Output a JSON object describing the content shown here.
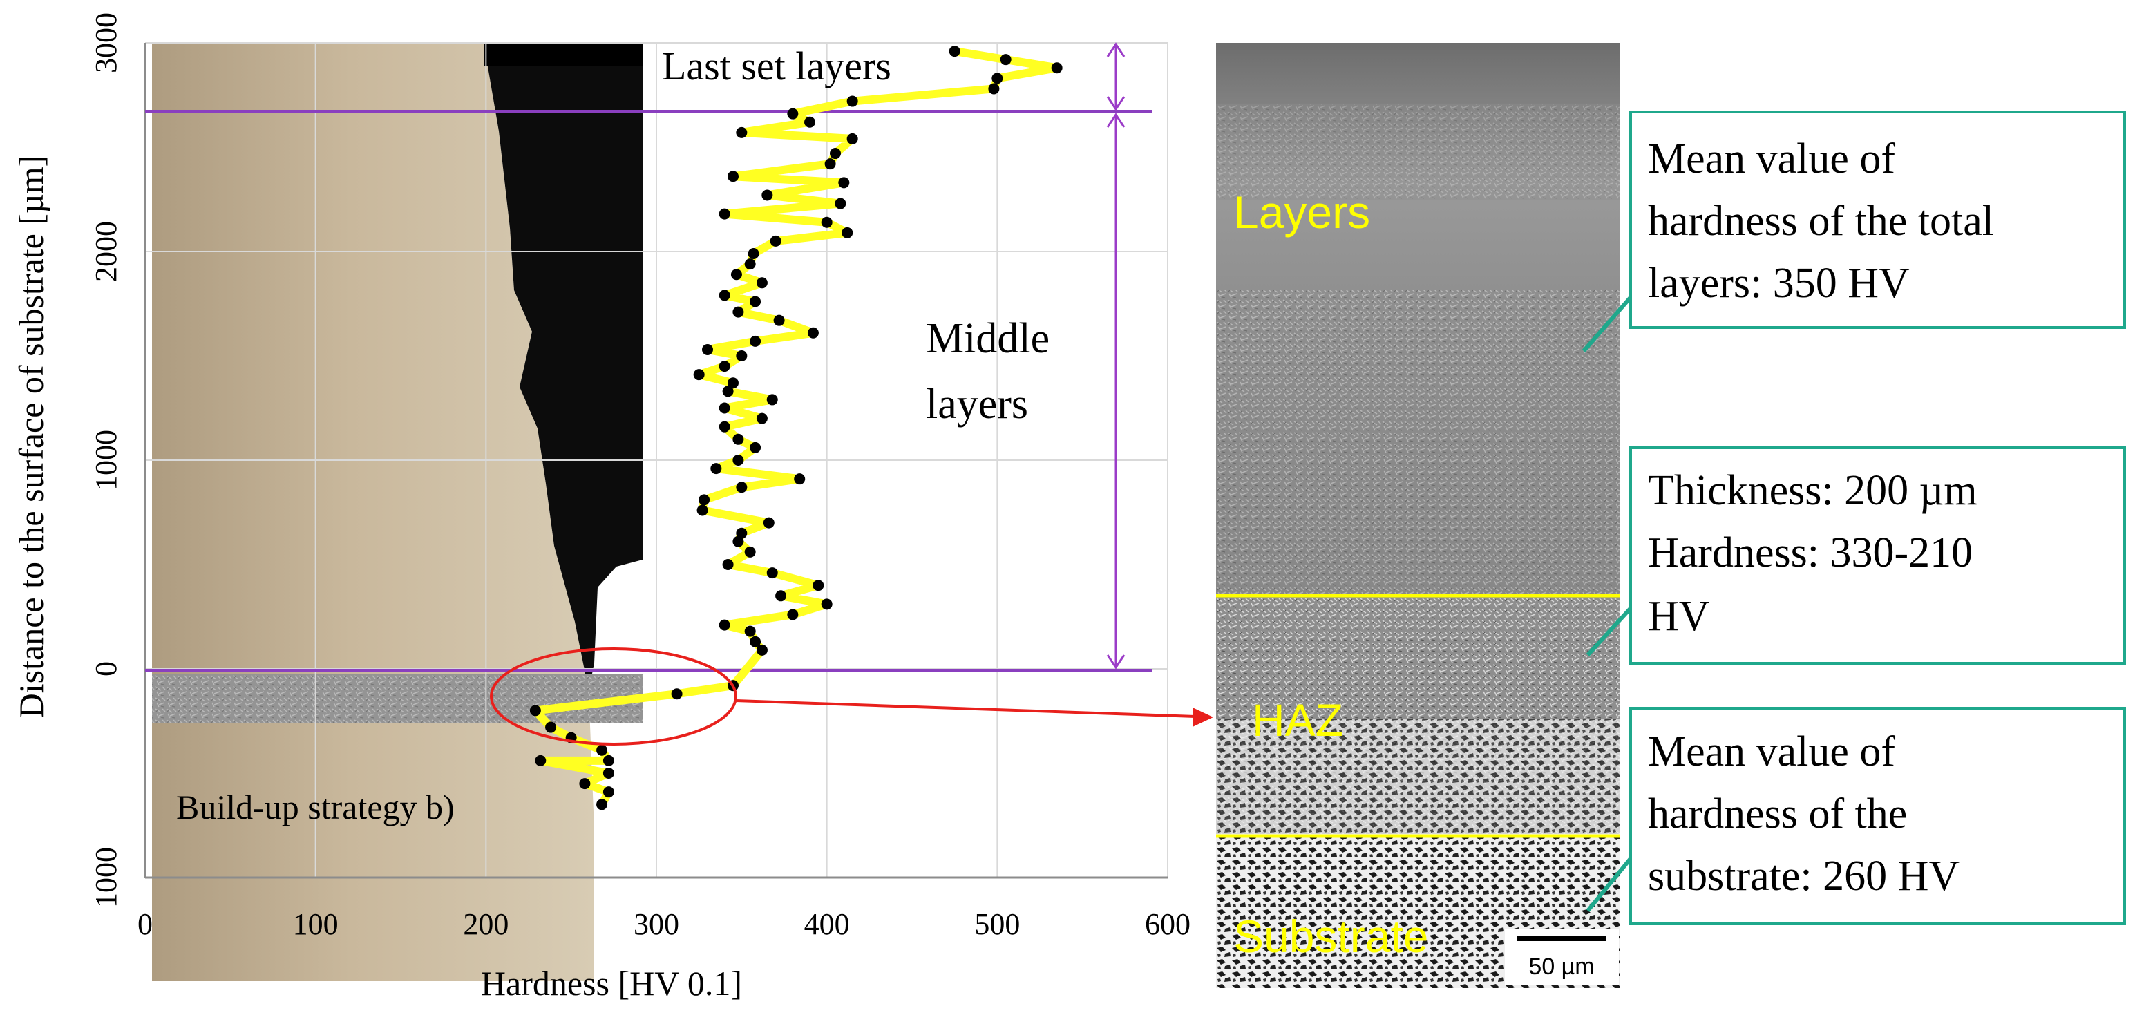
{
  "colors": {
    "profile_line": "#ffff22",
    "marker": "#000000",
    "layer_boundary": "#8a3fbf",
    "region_arrow": "#9b3cc8",
    "highlight": "#e8201c",
    "micro_label": "#ffff00",
    "callout_border": "#1fa88c",
    "grid": "#d9d9d9"
  },
  "chart_data": {
    "type": "scatter",
    "title": "",
    "xlabel": "Hardness [HV 0.1]",
    "ylabel": "Distance to the surface of substrate [µm]",
    "xlim": [
      0,
      600
    ],
    "ylim": [
      -1000,
      3000
    ],
    "x_ticks": [
      0,
      100,
      200,
      300,
      400,
      500,
      600
    ],
    "x_tick_labels": [
      "0",
      "100",
      "200",
      "300",
      "400",
      "500",
      "600"
    ],
    "y_ticks": [
      3000,
      2000,
      1000,
      0,
      -1000
    ],
    "y_tick_labels": [
      "3000",
      "2000",
      "1000",
      "0",
      "1000"
    ],
    "series": [
      {
        "name": "Hardness profile",
        "points": [
          [
            475,
            2960
          ],
          [
            505,
            2920
          ],
          [
            535,
            2880
          ],
          [
            500,
            2830
          ],
          [
            498,
            2780
          ],
          [
            415,
            2720
          ],
          [
            380,
            2660
          ],
          [
            390,
            2620
          ],
          [
            350,
            2570
          ],
          [
            415,
            2540
          ],
          [
            405,
            2470
          ],
          [
            402,
            2420
          ],
          [
            345,
            2360
          ],
          [
            410,
            2330
          ],
          [
            365,
            2270
          ],
          [
            408,
            2230
          ],
          [
            340,
            2180
          ],
          [
            400,
            2140
          ],
          [
            412,
            2090
          ],
          [
            370,
            2050
          ],
          [
            357,
            1990
          ],
          [
            355,
            1940
          ],
          [
            347,
            1890
          ],
          [
            362,
            1850
          ],
          [
            340,
            1790
          ],
          [
            358,
            1760
          ],
          [
            348,
            1710
          ],
          [
            372,
            1670
          ],
          [
            392,
            1610
          ],
          [
            358,
            1570
          ],
          [
            330,
            1530
          ],
          [
            350,
            1500
          ],
          [
            340,
            1450
          ],
          [
            325,
            1410
          ],
          [
            345,
            1370
          ],
          [
            342,
            1330
          ],
          [
            368,
            1290
          ],
          [
            340,
            1250
          ],
          [
            362,
            1200
          ],
          [
            340,
            1160
          ],
          [
            348,
            1100
          ],
          [
            358,
            1060
          ],
          [
            348,
            1000
          ],
          [
            335,
            960
          ],
          [
            384,
            910
          ],
          [
            350,
            870
          ],
          [
            328,
            810
          ],
          [
            327,
            760
          ],
          [
            366,
            700
          ],
          [
            350,
            650
          ],
          [
            348,
            610
          ],
          [
            355,
            560
          ],
          [
            342,
            500
          ],
          [
            368,
            460
          ],
          [
            395,
            400
          ],
          [
            373,
            350
          ],
          [
            400,
            310
          ],
          [
            380,
            260
          ],
          [
            340,
            210
          ],
          [
            355,
            180
          ],
          [
            358,
            130
          ],
          [
            362,
            90
          ],
          [
            345,
            -80
          ],
          [
            312,
            -120
          ],
          [
            229,
            -200
          ],
          [
            238,
            -280
          ],
          [
            250,
            -330
          ],
          [
            268,
            -390
          ],
          [
            272,
            -440
          ],
          [
            232,
            -440
          ],
          [
            272,
            -500
          ],
          [
            258,
            -550
          ],
          [
            272,
            -590
          ],
          [
            268,
            -650
          ]
        ]
      }
    ],
    "annotations": [
      "Last set layers",
      "Middle layers",
      "Build-up strategy b)"
    ]
  },
  "micrograph": {
    "labels": {
      "layers": "Layers",
      "haz": "HAZ",
      "substrate": "Substrate"
    },
    "scale_bar_label": "50 µm"
  },
  "callouts": [
    {
      "lines": [
        "Mean value of",
        "hardness of the total",
        "layers: 350 HV"
      ]
    },
    {
      "lines": [
        "Thickness: 200 µm",
        "Hardness: 330-210",
        "HV"
      ]
    },
    {
      "lines": [
        "Mean value of",
        "hardness of the",
        "substrate: 260 HV"
      ]
    }
  ]
}
